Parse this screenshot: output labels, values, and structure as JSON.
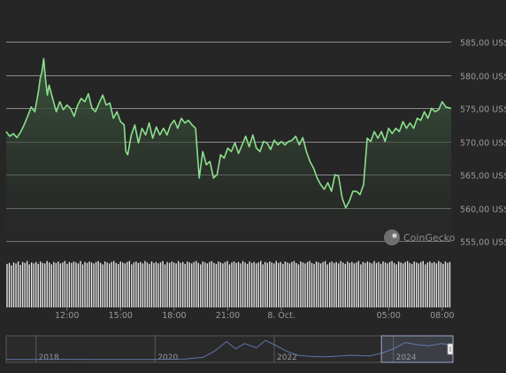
{
  "chart_data": {
    "type": "area",
    "currency_suffix": " US$",
    "y_ticks": [
      555,
      560,
      565,
      570,
      575,
      580,
      585
    ],
    "y_tick_labels": [
      "555,00 US$",
      "560,00 US$",
      "565,00 US$",
      "570,00 US$",
      "575,00 US$",
      "580,00 US$",
      "585,00 US$"
    ],
    "ylim": [
      553,
      588
    ],
    "x_ticks": [
      {
        "t": 3.0,
        "label": "12:00"
      },
      {
        "t": 6.0,
        "label": "15:00"
      },
      {
        "t": 9.0,
        "label": "18:00"
      },
      {
        "t": 12.0,
        "label": "21:00"
      },
      {
        "t": 15.0,
        "label": "8. Oct."
      },
      {
        "t": 21.0,
        "label": "05:00"
      },
      {
        "t": 24.0,
        "label": "08:00"
      }
    ],
    "xlim": [
      -0.4,
      24.5
    ],
    "price": [
      [
        -0.4,
        571.5
      ],
      [
        -0.2,
        570.8
      ],
      [
        0.0,
        571.2
      ],
      [
        0.2,
        570.6
      ],
      [
        0.4,
        571.4
      ],
      [
        0.6,
        572.5
      ],
      [
        0.8,
        573.8
      ],
      [
        1.0,
        575.2
      ],
      [
        1.2,
        574.5
      ],
      [
        1.4,
        577.5
      ],
      [
        1.5,
        579.5
      ],
      [
        1.6,
        580.5
      ],
      [
        1.7,
        582.5
      ],
      [
        1.8,
        579.5
      ],
      [
        1.9,
        577.0
      ],
      [
        2.0,
        578.5
      ],
      [
        2.2,
        576.5
      ],
      [
        2.4,
        574.5
      ],
      [
        2.6,
        576.0
      ],
      [
        2.8,
        574.8
      ],
      [
        3.0,
        575.5
      ],
      [
        3.2,
        575.0
      ],
      [
        3.4,
        573.8
      ],
      [
        3.6,
        575.5
      ],
      [
        3.8,
        576.5
      ],
      [
        4.0,
        576.0
      ],
      [
        4.2,
        577.2
      ],
      [
        4.4,
        575.0
      ],
      [
        4.6,
        574.5
      ],
      [
        4.8,
        575.8
      ],
      [
        5.0,
        577.0
      ],
      [
        5.2,
        575.5
      ],
      [
        5.4,
        575.8
      ],
      [
        5.6,
        573.5
      ],
      [
        5.8,
        574.5
      ],
      [
        6.0,
        573.0
      ],
      [
        6.2,
        572.5
      ],
      [
        6.3,
        568.5
      ],
      [
        6.4,
        568.0
      ],
      [
        6.6,
        571.0
      ],
      [
        6.8,
        572.5
      ],
      [
        7.0,
        569.8
      ],
      [
        7.2,
        572.0
      ],
      [
        7.4,
        571.0
      ],
      [
        7.6,
        572.8
      ],
      [
        7.8,
        570.5
      ],
      [
        8.0,
        572.2
      ],
      [
        8.2,
        571.0
      ],
      [
        8.4,
        572.0
      ],
      [
        8.6,
        571.0
      ],
      [
        8.8,
        572.5
      ],
      [
        9.0,
        573.2
      ],
      [
        9.2,
        572.0
      ],
      [
        9.4,
        573.5
      ],
      [
        9.6,
        572.8
      ],
      [
        9.8,
        573.2
      ],
      [
        10.0,
        572.5
      ],
      [
        10.2,
        572.0
      ],
      [
        10.4,
        564.5
      ],
      [
        10.6,
        568.5
      ],
      [
        10.8,
        566.5
      ],
      [
        11.0,
        567.0
      ],
      [
        11.2,
        564.5
      ],
      [
        11.4,
        565.0
      ],
      [
        11.6,
        568.0
      ],
      [
        11.8,
        567.5
      ],
      [
        12.0,
        569.0
      ],
      [
        12.2,
        568.5
      ],
      [
        12.4,
        569.8
      ],
      [
        12.6,
        568.2
      ],
      [
        12.8,
        569.5
      ],
      [
        13.0,
        570.8
      ],
      [
        13.2,
        569.2
      ],
      [
        13.4,
        571.0
      ],
      [
        13.6,
        569.0
      ],
      [
        13.8,
        568.5
      ],
      [
        14.0,
        570.0
      ],
      [
        14.2,
        569.8
      ],
      [
        14.4,
        568.8
      ],
      [
        14.6,
        570.2
      ],
      [
        14.8,
        569.5
      ],
      [
        15.0,
        570.0
      ],
      [
        15.2,
        569.5
      ],
      [
        15.4,
        570.0
      ],
      [
        15.6,
        570.2
      ],
      [
        15.8,
        570.8
      ],
      [
        16.0,
        569.5
      ],
      [
        16.2,
        570.6
      ],
      [
        16.4,
        568.5
      ],
      [
        16.6,
        567.0
      ],
      [
        16.8,
        566.0
      ],
      [
        17.0,
        564.5
      ],
      [
        17.2,
        563.5
      ],
      [
        17.4,
        562.8
      ],
      [
        17.6,
        563.8
      ],
      [
        17.8,
        562.5
      ],
      [
        18.0,
        565.0
      ],
      [
        18.2,
        564.8
      ],
      [
        18.4,
        561.5
      ],
      [
        18.6,
        560.0
      ],
      [
        18.8,
        561.0
      ],
      [
        19.0,
        562.5
      ],
      [
        19.2,
        562.5
      ],
      [
        19.4,
        562.0
      ],
      [
        19.6,
        563.5
      ],
      [
        19.8,
        570.5
      ],
      [
        20.0,
        570.0
      ],
      [
        20.2,
        571.5
      ],
      [
        20.4,
        570.5
      ],
      [
        20.6,
        571.5
      ],
      [
        20.8,
        570.0
      ],
      [
        21.0,
        572.0
      ],
      [
        21.2,
        571.2
      ],
      [
        21.4,
        572.0
      ],
      [
        21.6,
        571.5
      ],
      [
        21.8,
        573.0
      ],
      [
        22.0,
        572.0
      ],
      [
        22.2,
        572.8
      ],
      [
        22.4,
        572.0
      ],
      [
        22.6,
        573.5
      ],
      [
        22.8,
        573.2
      ],
      [
        23.0,
        574.5
      ],
      [
        23.2,
        573.5
      ],
      [
        23.4,
        575.0
      ],
      [
        23.6,
        574.5
      ],
      [
        23.8,
        574.8
      ],
      [
        24.0,
        576.0
      ],
      [
        24.2,
        575.2
      ],
      [
        24.5,
        575.0
      ]
    ],
    "volume": [
      0.91,
      0.93,
      0.88,
      0.94,
      0.92,
      0.96,
      0.89,
      0.95,
      0.93,
      0.97,
      0.9,
      0.94,
      0.92,
      0.95,
      0.91,
      0.96,
      0.93,
      0.92,
      0.97,
      0.94,
      0.9,
      0.95,
      0.93,
      0.96,
      0.92,
      0.94,
      0.97,
      0.91,
      0.95,
      0.93,
      0.96,
      0.94,
      0.92,
      0.97,
      0.9,
      0.95,
      0.93,
      0.96,
      0.94,
      0.92,
      0.95,
      0.97,
      0.93,
      0.9,
      0.96,
      0.94,
      0.92,
      0.95,
      0.97,
      0.93,
      0.91,
      0.96,
      0.94,
      0.92,
      0.95,
      0.97,
      0.9,
      0.94,
      0.96,
      0.93,
      0.95,
      0.92,
      0.97,
      0.94,
      0.91,
      0.96,
      0.93,
      0.95,
      0.92,
      0.94,
      0.97,
      0.9,
      0.95,
      0.93,
      0.96,
      0.94,
      0.92,
      0.97,
      0.93,
      0.95,
      0.91,
      0.96,
      0.94,
      0.92,
      0.95,
      0.97,
      0.93,
      0.9,
      0.96,
      0.94,
      0.92,
      0.95,
      0.97,
      0.93,
      0.91,
      0.96,
      0.94,
      0.92,
      0.95,
      0.97,
      0.9,
      0.94,
      0.96,
      0.93,
      0.95,
      0.92,
      0.97,
      0.94,
      0.91,
      0.96,
      0.93,
      0.95,
      0.92,
      0.94,
      0.97,
      0.9,
      0.95,
      0.93,
      0.96,
      0.94,
      0.92,
      0.97,
      0.93,
      0.95,
      0.91,
      0.96,
      0.94,
      0.92,
      0.95,
      0.97,
      0.93,
      0.9,
      0.96,
      0.94,
      0.92,
      0.95,
      0.97,
      0.93,
      0.91,
      0.96,
      0.94,
      0.92,
      0.95,
      0.97,
      0.9,
      0.94,
      0.96,
      0.93,
      0.95,
      0.92,
      0.97,
      0.94,
      0.91,
      0.96,
      0.93,
      0.95,
      0.92,
      0.94,
      0.97,
      0.9,
      0.95,
      0.93,
      0.96,
      0.94,
      0.92,
      0.97,
      0.93,
      0.95,
      0.91,
      0.96,
      0.94,
      0.92,
      0.95,
      0.97,
      0.93,
      0.9,
      0.96,
      0.94,
      0.92,
      0.95,
      0.97,
      0.93,
      0.91,
      0.96,
      0.94,
      0.92,
      0.95,
      0.97,
      0.9,
      0.94,
      0.96,
      0.93,
      0.95,
      0.92,
      0.97,
      0.94,
      0.91,
      0.96,
      0.93,
      0.95
    ],
    "navigator": {
      "year_labels": [
        "2018",
        "2020",
        "2022",
        "2024"
      ],
      "year_range": [
        2017.5,
        2025.0
      ],
      "year_ticks": [
        2018,
        2020,
        2022,
        2024
      ],
      "series": [
        [
          2017.5,
          0.05
        ],
        [
          2018.0,
          0.05
        ],
        [
          2018.5,
          0.06
        ],
        [
          2019.0,
          0.05
        ],
        [
          2019.5,
          0.05
        ],
        [
          2020.0,
          0.05
        ],
        [
          2020.5,
          0.07
        ],
        [
          2020.8,
          0.15
        ],
        [
          2021.0,
          0.45
        ],
        [
          2021.2,
          0.9
        ],
        [
          2021.35,
          0.55
        ],
        [
          2021.5,
          0.8
        ],
        [
          2021.7,
          0.6
        ],
        [
          2021.85,
          0.95
        ],
        [
          2022.0,
          0.75
        ],
        [
          2022.2,
          0.45
        ],
        [
          2022.4,
          0.25
        ],
        [
          2022.6,
          0.2
        ],
        [
          2022.8,
          0.18
        ],
        [
          2023.0,
          0.2
        ],
        [
          2023.3,
          0.25
        ],
        [
          2023.6,
          0.22
        ],
        [
          2023.8,
          0.35
        ],
        [
          2024.0,
          0.55
        ],
        [
          2024.2,
          0.85
        ],
        [
          2024.4,
          0.75
        ],
        [
          2024.6,
          0.7
        ],
        [
          2024.8,
          0.8
        ],
        [
          2025.0,
          0.72
        ]
      ],
      "selection_start": 2023.8
    },
    "watermark": "CoinGecko",
    "colors": {
      "line": "#8be08b",
      "area_top": "#3c5a3f",
      "area_bottom": "#262626",
      "grid": "#8a8a8a",
      "text": "#9a9a9a",
      "volume": "#e8e8e8",
      "background": "#262626"
    }
  }
}
